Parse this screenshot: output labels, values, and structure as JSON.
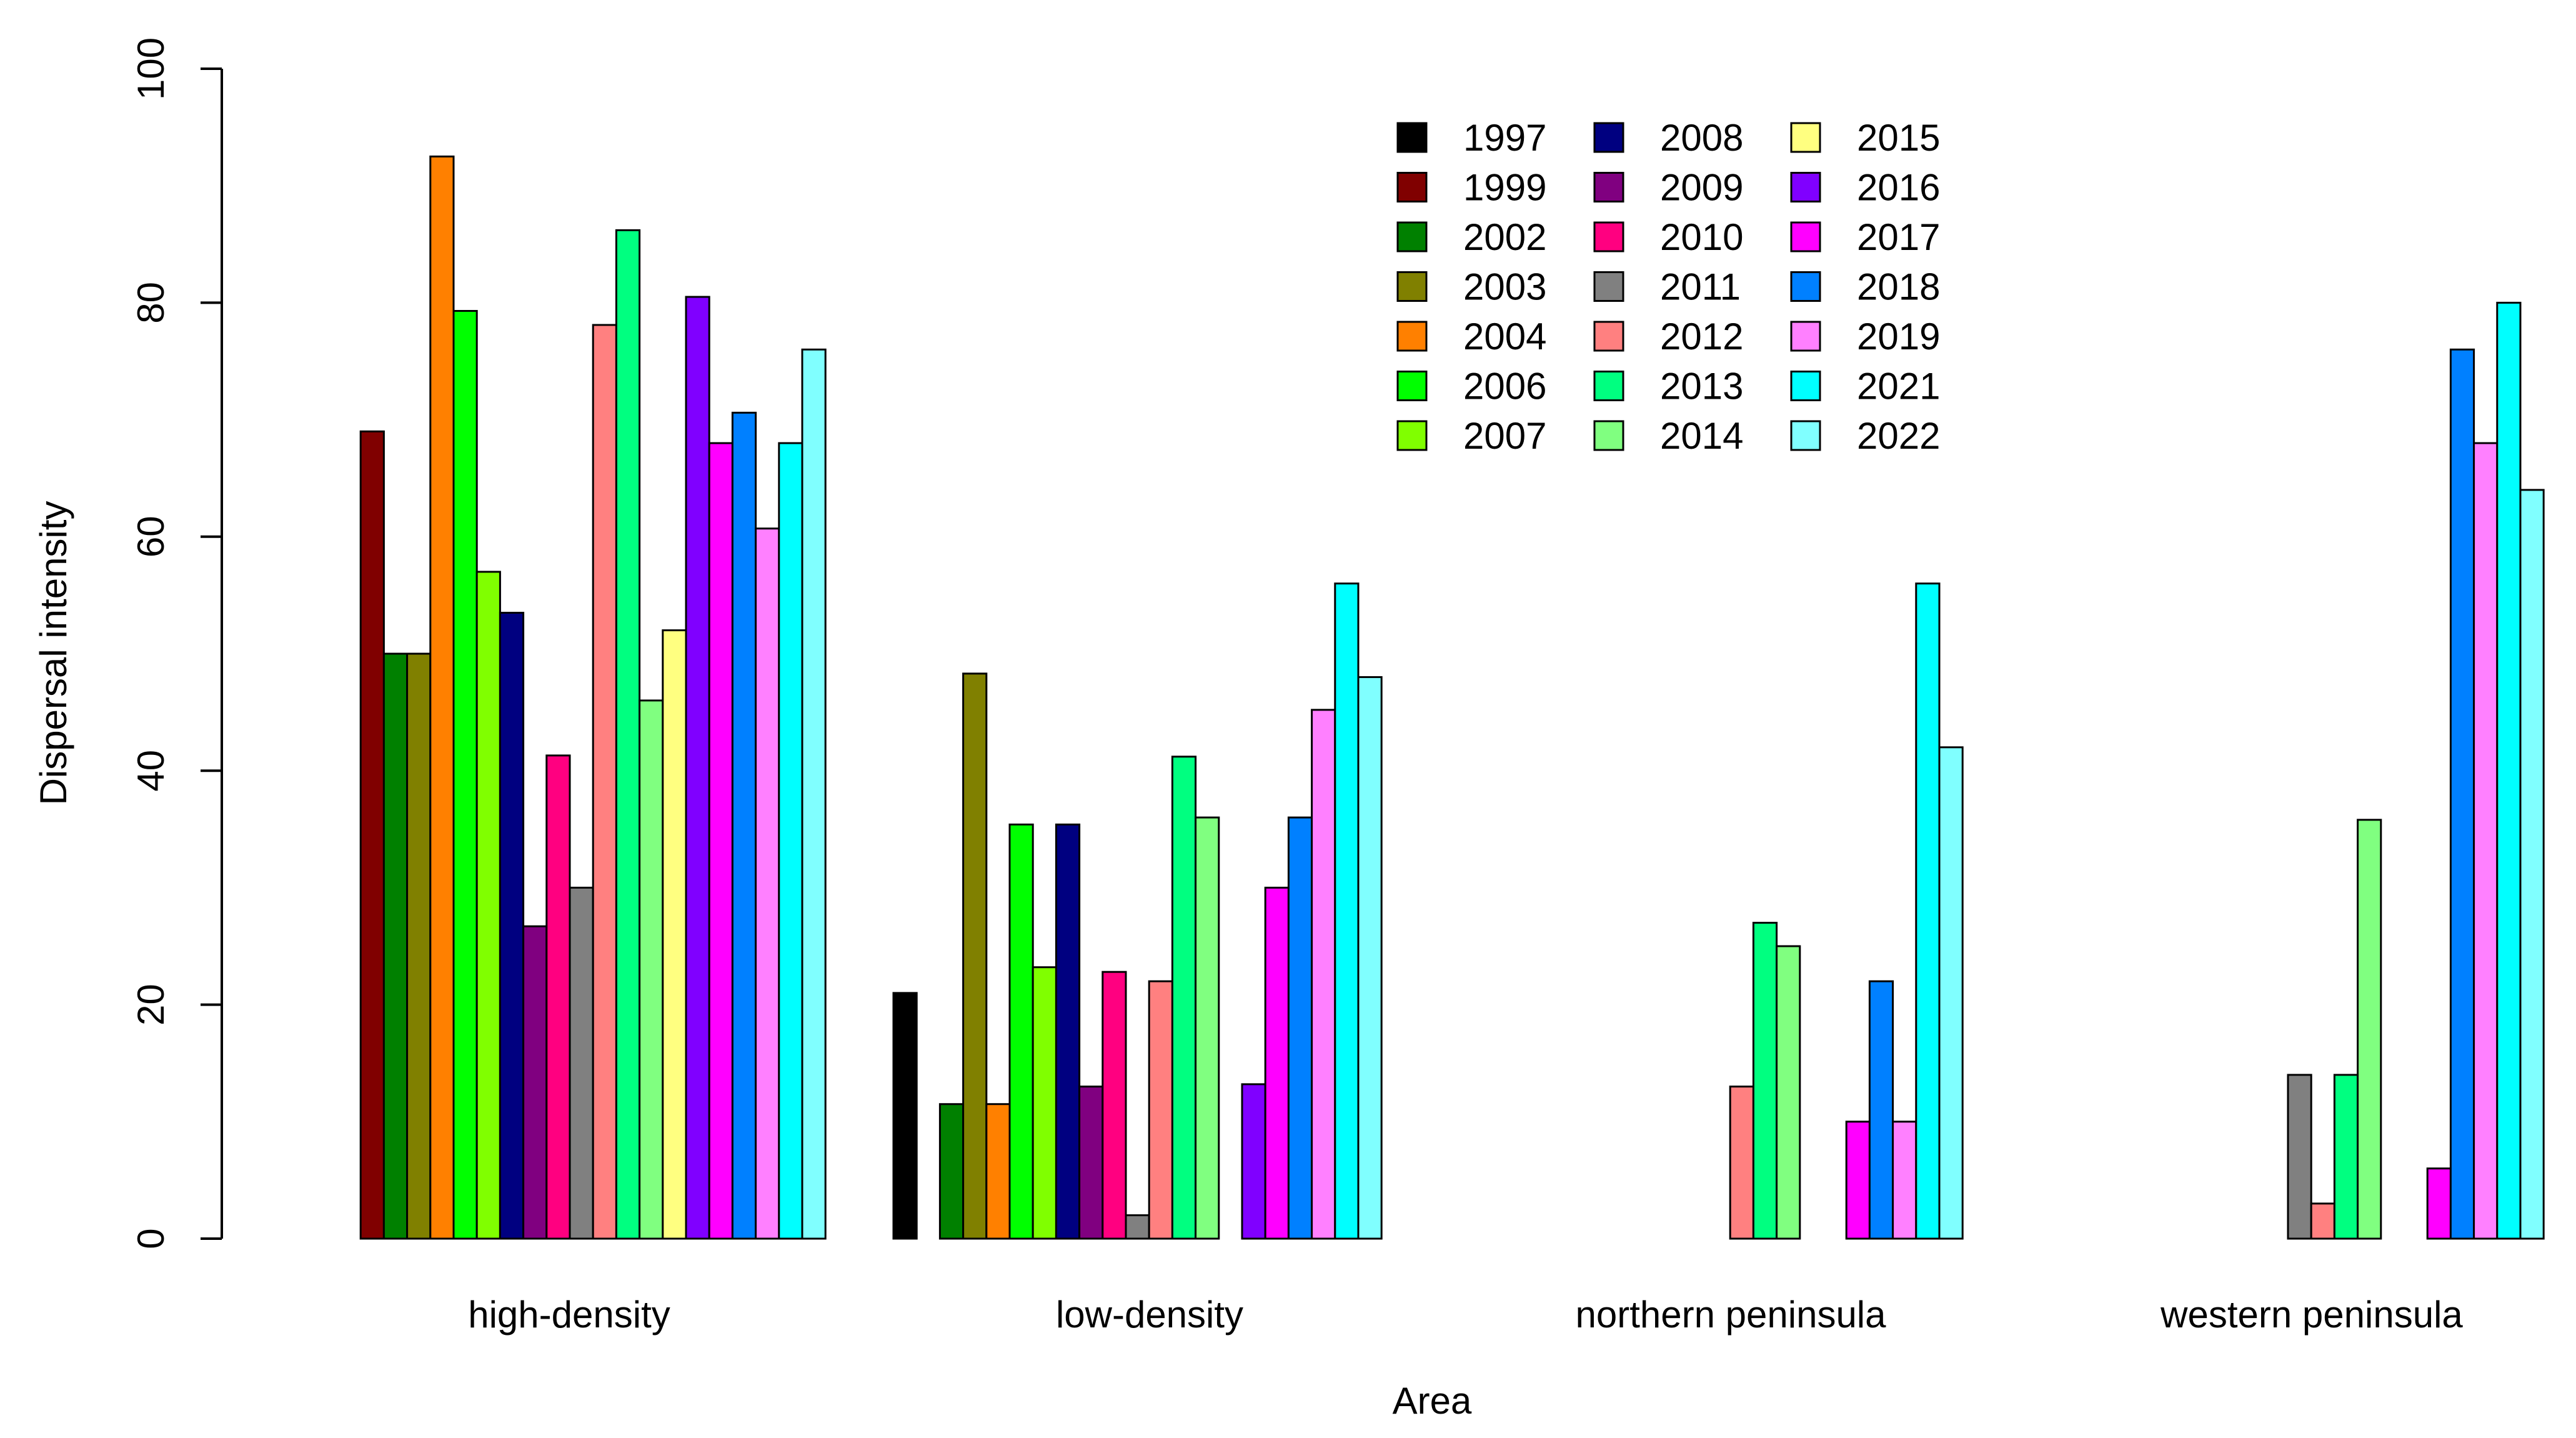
{
  "chart_data": {
    "type": "bar",
    "title": "",
    "xlabel": "Area",
    "ylabel": "Dispersal intensity",
    "ylim": [
      0,
      100
    ],
    "yticks": [
      0,
      20,
      40,
      60,
      80,
      100
    ],
    "legend_position": "top-right",
    "categories": [
      "high-density",
      "low-density",
      "northern peninsula",
      "western peninsula"
    ],
    "series": [
      {
        "name": "1997",
        "color": "#000000",
        "values": [
          null,
          21,
          null,
          null
        ]
      },
      {
        "name": "1999",
        "color": "#800000",
        "values": [
          69,
          null,
          null,
          null
        ]
      },
      {
        "name": "2002",
        "color": "#008000",
        "values": [
          50,
          11.5,
          null,
          null
        ]
      },
      {
        "name": "2003",
        "color": "#808000",
        "values": [
          50,
          48.3,
          null,
          null
        ]
      },
      {
        "name": "2004",
        "color": "#ff8000",
        "values": [
          92.5,
          11.5,
          null,
          null
        ]
      },
      {
        "name": "2006",
        "color": "#00ff00",
        "values": [
          79.3,
          35.4,
          null,
          null
        ]
      },
      {
        "name": "2007",
        "color": "#80ff00",
        "values": [
          57,
          23.2,
          null,
          null
        ]
      },
      {
        "name": "2008",
        "color": "#000080",
        "values": [
          53.5,
          35.4,
          null,
          null
        ]
      },
      {
        "name": "2009",
        "color": "#800080",
        "values": [
          26.7,
          13,
          null,
          null
        ]
      },
      {
        "name": "2010",
        "color": "#ff0080",
        "values": [
          41.3,
          22.8,
          0,
          null
        ]
      },
      {
        "name": "2011",
        "color": "#808080",
        "values": [
          30,
          2,
          null,
          14
        ]
      },
      {
        "name": "2012",
        "color": "#ff8080",
        "values": [
          78.1,
          22,
          13,
          3
        ]
      },
      {
        "name": "2013",
        "color": "#00ff80",
        "values": [
          86.2,
          41.2,
          27,
          14
        ]
      },
      {
        "name": "2014",
        "color": "#80ff80",
        "values": [
          46,
          36,
          25,
          35.8
        ]
      },
      {
        "name": "2015",
        "color": "#ffff80",
        "values": [
          52,
          null,
          null,
          null
        ]
      },
      {
        "name": "2016",
        "color": "#8000ff",
        "values": [
          80.5,
          13.2,
          null,
          null
        ]
      },
      {
        "name": "2017",
        "color": "#ff00ff",
        "values": [
          68,
          30,
          10,
          6
        ]
      },
      {
        "name": "2018",
        "color": "#0080ff",
        "values": [
          70.6,
          36,
          22,
          76
        ]
      },
      {
        "name": "2019",
        "color": "#ff80ff",
        "values": [
          60.7,
          45.2,
          10,
          68
        ]
      },
      {
        "name": "2021",
        "color": "#00ffff",
        "values": [
          68,
          56,
          56,
          80
        ]
      },
      {
        "name": "2022",
        "color": "#80ffff",
        "values": [
          76,
          48,
          42,
          64
        ]
      }
    ]
  }
}
